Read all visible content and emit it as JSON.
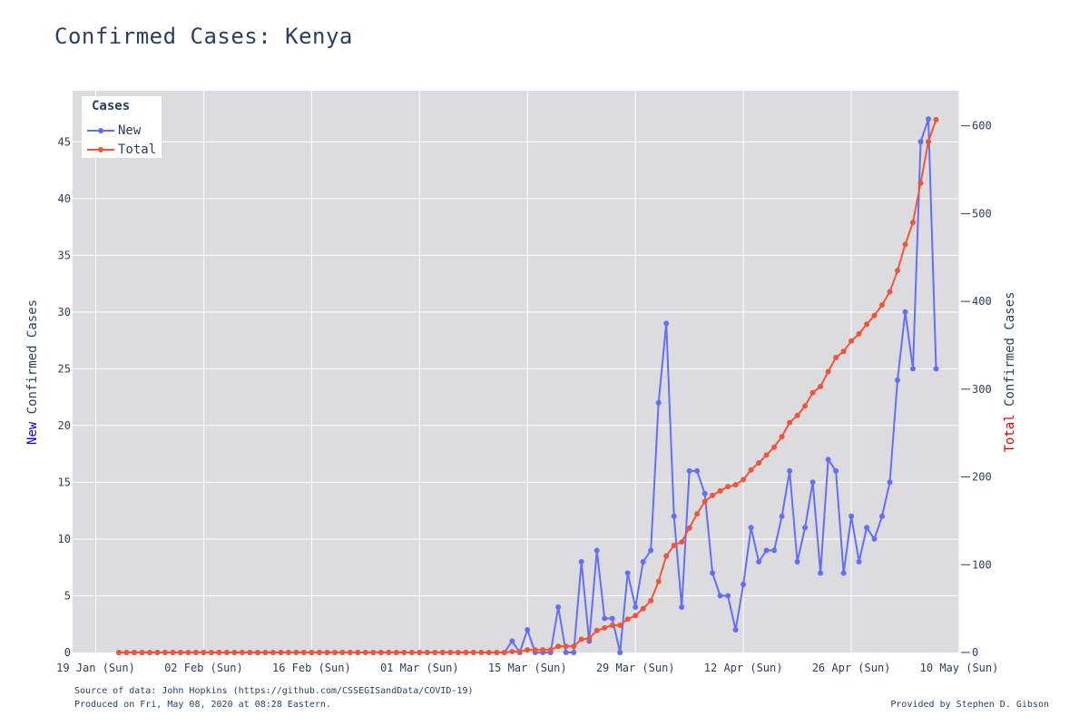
{
  "page": {
    "title": "Confirmed Cases: Kenya",
    "source_line": "Source of data: John Hopkins (https://github.com/CSSEGISandData/COVID-19)",
    "produced_line": "Produced on Fri, May 08, 2020 at 08:28 Eastern.",
    "credit_line": "Provided by Stephen D. Gibson"
  },
  "colors": {
    "new_series": "#636efa",
    "total_series": "#ef553b",
    "plot_background": "#dcdcde",
    "grid": "#ffffff",
    "text": "#2a3f5f"
  },
  "chart_data": {
    "type": "line",
    "title": "Confirmed Cases: Kenya",
    "legend": {
      "title": "Cases",
      "placement": "top-left",
      "entries": [
        "New",
        "Total"
      ]
    },
    "ylabel_left": {
      "highlight": "New",
      "rest": " Confirmed Cases"
    },
    "ylabel_right": {
      "highlight": "Total",
      "rest": " Confirmed Cases"
    },
    "x_start_date": "2020-01-22",
    "x_tick_labels": [
      "19 Jan (Sun)",
      "02 Feb (Sun)",
      "16 Feb (Sun)",
      "01 Mar (Sun)",
      "15 Mar (Sun)",
      "29 Mar (Sun)",
      "12 Apr (Sun)",
      "26 Apr (Sun)",
      "10 May (Sun)"
    ],
    "x_tick_dates": [
      "2020-01-19",
      "2020-02-02",
      "2020-02-16",
      "2020-03-01",
      "2020-03-15",
      "2020-03-29",
      "2020-04-12",
      "2020-04-26",
      "2020-05-10"
    ],
    "x_range": [
      "2020-01-16",
      "2020-05-10"
    ],
    "y_left_range": [
      0,
      49.5
    ],
    "y_left_ticks": [
      0,
      5,
      10,
      15,
      20,
      25,
      30,
      35,
      40,
      45
    ],
    "y_right_range": [
      0,
      640
    ],
    "y_right_ticks": [
      0,
      100,
      200,
      300,
      400,
      500,
      600
    ],
    "grid": true,
    "series": [
      {
        "name": "New",
        "axis": "left",
        "values": [
          0,
          0,
          0,
          0,
          0,
          0,
          0,
          0,
          0,
          0,
          0,
          0,
          0,
          0,
          0,
          0,
          0,
          0,
          0,
          0,
          0,
          0,
          0,
          0,
          0,
          0,
          0,
          0,
          0,
          0,
          0,
          0,
          0,
          0,
          0,
          0,
          0,
          0,
          0,
          0,
          0,
          0,
          0,
          0,
          0,
          0,
          0,
          0,
          0,
          0,
          0,
          1,
          0,
          2,
          0,
          0,
          0,
          4,
          0,
          0,
          8,
          1,
          9,
          3,
          3,
          0,
          7,
          4,
          8,
          9,
          22,
          29,
          12,
          4,
          16,
          16,
          14,
          7,
          5,
          5,
          2,
          6,
          11,
          8,
          9,
          9,
          12,
          16,
          8,
          11,
          15,
          7,
          17,
          16,
          7,
          12,
          8,
          11,
          10,
          12,
          15,
          24,
          30,
          25,
          45,
          47,
          25
        ]
      },
      {
        "name": "Total",
        "axis": "right",
        "values": [
          0,
          0,
          0,
          0,
          0,
          0,
          0,
          0,
          0,
          0,
          0,
          0,
          0,
          0,
          0,
          0,
          0,
          0,
          0,
          0,
          0,
          0,
          0,
          0,
          0,
          0,
          0,
          0,
          0,
          0,
          0,
          0,
          0,
          0,
          0,
          0,
          0,
          0,
          0,
          0,
          0,
          0,
          0,
          0,
          0,
          0,
          0,
          0,
          0,
          0,
          0,
          1,
          1,
          3,
          3,
          3,
          3,
          7,
          7,
          7,
          15,
          16,
          25,
          28,
          31,
          31,
          38,
          42,
          50,
          59,
          81,
          110,
          122,
          126,
          142,
          158,
          172,
          179,
          184,
          189,
          191,
          197,
          208,
          216,
          225,
          234,
          246,
          262,
          270,
          281,
          296,
          303,
          320,
          336,
          343,
          355,
          363,
          374,
          384,
          396,
          411,
          435,
          465,
          490,
          535,
          582,
          607
        ]
      }
    ]
  }
}
